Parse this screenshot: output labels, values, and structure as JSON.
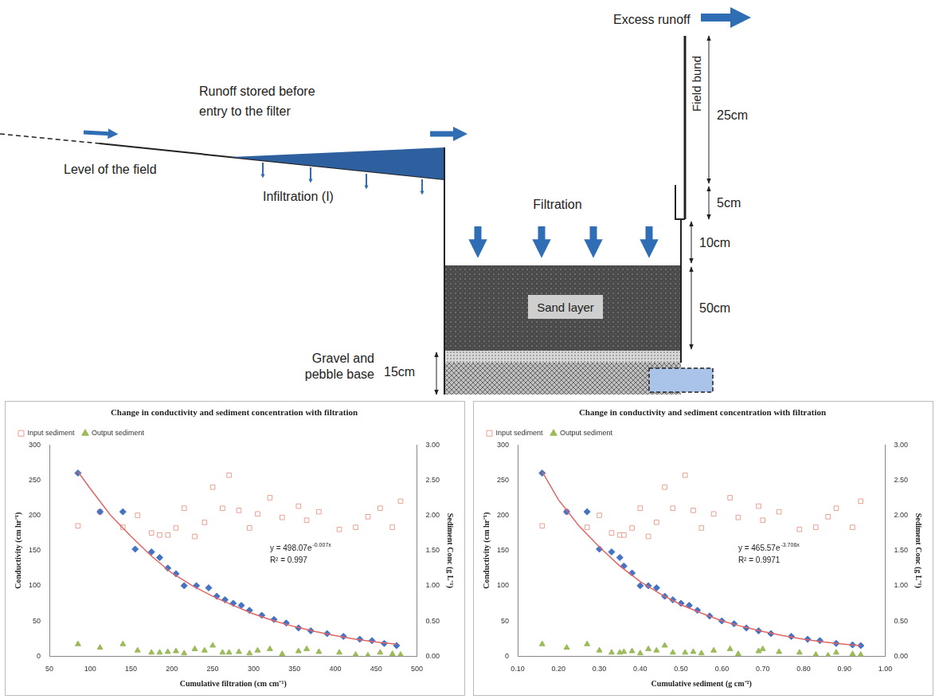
{
  "diagram": {
    "excess_runoff": "Excess runoff",
    "field_bund": "Field bund",
    "bund_height": "25cm",
    "bund_base": "5cm",
    "runoff_stored": "Runoff stored before entry to the filter",
    "field_level": "Level of the field",
    "infiltration": "Infiltration (I)",
    "filtration": "Filtration",
    "freeboard": "10cm",
    "sand_layer": "Sand layer",
    "sand_depth": "50cm",
    "gravel_base": "Gravel and pebble base",
    "gravel_depth": "15cm"
  },
  "chart_data": [
    {
      "type": "scatter",
      "title": "Change in conductivity and sediment concentration with filtration",
      "x_label": "Cumulative filtration (cm cm⁻¹)",
      "y_label": "Conductivity (cm hr⁻¹)",
      "y2_label": "Sediment Conc (g L⁻¹)",
      "xlim": [
        50,
        500
      ],
      "xticks": [
        50,
        100,
        150,
        200,
        250,
        300,
        350,
        400,
        450,
        500
      ],
      "ylim": [
        0,
        300
      ],
      "yticks": [
        0,
        50,
        100,
        150,
        200,
        250,
        300
      ],
      "y2lim": [
        0,
        3
      ],
      "y2ticks": [
        {
          "value": 0,
          "label": "0.00"
        },
        {
          "value": 0.5,
          "label": "0.50"
        },
        {
          "value": 1,
          "label": "1.00"
        },
        {
          "value": 1.5,
          "label": "1.50"
        },
        {
          "value": 2,
          "label": "2.00"
        },
        {
          "value": 2.5,
          "label": "2.50"
        },
        {
          "value": 3,
          "label": "3.00"
        }
      ],
      "grid": false,
      "legend": "top",
      "annotations": {
        "equation": "y = 498.07e",
        "equation_exponent": "-0.007x",
        "r_squared": "R² = 0.997"
      },
      "series": [
        {
          "color": "#4472c4",
          "marker": "diamond",
          "type": "scatter",
          "x": [
            85,
            112,
            140,
            155,
            175,
            185,
            195,
            205,
            215,
            230,
            245,
            255,
            265,
            275,
            285,
            295,
            310,
            325,
            340,
            355,
            370,
            390,
            410,
            430,
            445,
            460,
            475
          ],
          "values": [
            260,
            205,
            205,
            152,
            148,
            140,
            125,
            117,
            100,
            100,
            97,
            85,
            80,
            75,
            72,
            65,
            58,
            52,
            47,
            40,
            36,
            32,
            28,
            24,
            22,
            18,
            15
          ]
        },
        {
          "color": "#e06666",
          "marker": "none",
          "type": "line",
          "line_style": "solid",
          "x": [
            85,
            100,
            125,
            150,
            175,
            200,
            225,
            250,
            275,
            300,
            325,
            350,
            375,
            400,
            425,
            450,
            475
          ],
          "values": [
            262,
            238,
            200,
            170,
            142,
            118,
            100,
            85,
            72,
            60,
            50,
            42,
            35,
            29,
            24,
            20,
            17
          ]
        },
        {
          "name": "Input sediment",
          "color": "#e8a090",
          "marker": "open_square",
          "type": "scatter",
          "axis": "y2",
          "x": [
            85,
            112,
            140,
            158,
            175,
            185,
            195,
            205,
            215,
            228,
            240,
            250,
            262,
            270,
            282,
            295,
            305,
            320,
            335,
            355,
            365,
            380,
            405,
            425,
            440,
            455,
            470,
            480
          ],
          "values": [
            1.85,
            2.05,
            1.83,
            2.0,
            1.75,
            1.72,
            1.72,
            1.82,
            2.1,
            1.7,
            1.9,
            2.4,
            2.1,
            2.57,
            2.07,
            1.82,
            2.02,
            2.25,
            1.97,
            2.13,
            1.93,
            2.05,
            1.8,
            1.83,
            1.98,
            2.1,
            1.83,
            2.2
          ]
        },
        {
          "name": "Output sediment",
          "color": "#9bbb59",
          "marker": "triangle",
          "type": "scatter",
          "axis": "y2",
          "x": [
            85,
            112,
            140,
            158,
            175,
            185,
            195,
            205,
            215,
            228,
            240,
            250,
            262,
            270,
            282,
            295,
            305,
            320,
            335,
            355,
            365,
            380,
            405,
            425,
            440,
            455,
            470,
            480
          ],
          "values": [
            0.17,
            0.12,
            0.17,
            0.08,
            0.05,
            0.05,
            0.06,
            0.07,
            0.04,
            0.1,
            0.08,
            0.15,
            0.05,
            0.05,
            0.06,
            0.04,
            0.08,
            0.1,
            0.03,
            0.07,
            0.1,
            0.06,
            0.05,
            0.02,
            0.01,
            0.05,
            0.03,
            0.02
          ]
        }
      ]
    },
    {
      "type": "scatter",
      "title": "Change in conductivity and sediment concentration with filtration",
      "x_label": "Cumulative sediment (g cm⁻²)",
      "y_label": "Conductivity (cm hr⁻¹)",
      "y2_label": "Sediment Conc (g L⁻¹)",
      "xlim": [
        0.1,
        1
      ],
      "xticks": [
        {
          "value": 0.1,
          "label": "0.10"
        },
        {
          "value": 0.2,
          "label": "0.20"
        },
        {
          "value": 0.3,
          "label": "0.30"
        },
        {
          "value": 0.4,
          "label": "0.40"
        },
        {
          "value": 0.5,
          "label": "0.50"
        },
        {
          "value": 0.6,
          "label": "0.60"
        },
        {
          "value": 0.7,
          "label": "0.70"
        },
        {
          "value": 0.8,
          "label": "0.80"
        },
        {
          "value": 0.9,
          "label": "0.90"
        },
        {
          "value": 1,
          "label": "1.00"
        }
      ],
      "ylim": [
        0,
        300
      ],
      "yticks": [
        0,
        50,
        100,
        150,
        200,
        250,
        300
      ],
      "y2lim": [
        0,
        3
      ],
      "y2ticks": [
        {
          "value": 0,
          "label": "0.00"
        },
        {
          "value": 0.5,
          "label": "0.50"
        },
        {
          "value": 1,
          "label": "1.00"
        },
        {
          "value": 1.5,
          "label": "1.50"
        },
        {
          "value": 2,
          "label": "2.00"
        },
        {
          "value": 2.5,
          "label": "2.50"
        },
        {
          "value": 3,
          "label": "3.00"
        }
      ],
      "grid": false,
      "legend": "top",
      "annotations": {
        "equation": "y = 465.57e",
        "equation_exponent": "-3.706x",
        "r_squared": "R² = 0.9971"
      },
      "series": [
        {
          "color": "#4472c4",
          "marker": "diamond",
          "type": "scatter",
          "x": [
            0.16,
            0.22,
            0.27,
            0.3,
            0.33,
            0.35,
            0.36,
            0.38,
            0.4,
            0.42,
            0.44,
            0.46,
            0.48,
            0.5,
            0.52,
            0.54,
            0.57,
            0.6,
            0.63,
            0.66,
            0.69,
            0.72,
            0.77,
            0.81,
            0.84,
            0.88,
            0.92,
            0.94
          ],
          "values": [
            260,
            205,
            205,
            152,
            148,
            140,
            128,
            118,
            100,
            100,
            97,
            85,
            80,
            75,
            72,
            65,
            57,
            50,
            46,
            40,
            36,
            32,
            28,
            24,
            22,
            18,
            16,
            15
          ]
        },
        {
          "color": "#e06666",
          "marker": "none",
          "type": "line",
          "line_style": "solid",
          "x": [
            0.16,
            0.2,
            0.25,
            0.3,
            0.35,
            0.4,
            0.45,
            0.5,
            0.55,
            0.6,
            0.65,
            0.7,
            0.75,
            0.8,
            0.85,
            0.9,
            0.94
          ],
          "values": [
            262,
            222,
            185,
            155,
            128,
            106,
            88,
            73,
            61,
            50,
            42,
            35,
            29,
            24,
            20,
            17,
            15
          ]
        },
        {
          "name": "Input sediment",
          "color": "#e8a090",
          "marker": "open_square",
          "type": "scatter",
          "axis": "y2",
          "x": [
            0.16,
            0.22,
            0.27,
            0.3,
            0.33,
            0.35,
            0.36,
            0.38,
            0.4,
            0.42,
            0.44,
            0.46,
            0.48,
            0.51,
            0.53,
            0.55,
            0.58,
            0.62,
            0.64,
            0.69,
            0.7,
            0.74,
            0.79,
            0.83,
            0.86,
            0.88,
            0.92,
            0.94
          ],
          "values": [
            1.85,
            2.05,
            1.83,
            2.0,
            1.75,
            1.72,
            1.72,
            1.82,
            2.1,
            1.7,
            1.9,
            2.4,
            2.1,
            2.57,
            2.07,
            1.82,
            2.02,
            2.25,
            1.97,
            2.13,
            1.93,
            2.05,
            1.8,
            1.83,
            1.98,
            2.1,
            1.83,
            2.2
          ]
        },
        {
          "name": "Output sediment",
          "color": "#9bbb59",
          "marker": "triangle",
          "type": "scatter",
          "axis": "y2",
          "x": [
            0.16,
            0.22,
            0.27,
            0.3,
            0.33,
            0.35,
            0.36,
            0.38,
            0.4,
            0.42,
            0.44,
            0.46,
            0.48,
            0.51,
            0.53,
            0.55,
            0.58,
            0.62,
            0.64,
            0.69,
            0.7,
            0.74,
            0.79,
            0.83,
            0.86,
            0.88,
            0.92,
            0.94
          ],
          "values": [
            0.17,
            0.12,
            0.17,
            0.08,
            0.05,
            0.05,
            0.06,
            0.07,
            0.04,
            0.1,
            0.08,
            0.15,
            0.05,
            0.05,
            0.06,
            0.04,
            0.08,
            0.1,
            0.03,
            0.07,
            0.1,
            0.06,
            0.05,
            0.02,
            0.01,
            0.05,
            0.03,
            0.02
          ]
        }
      ]
    }
  ]
}
